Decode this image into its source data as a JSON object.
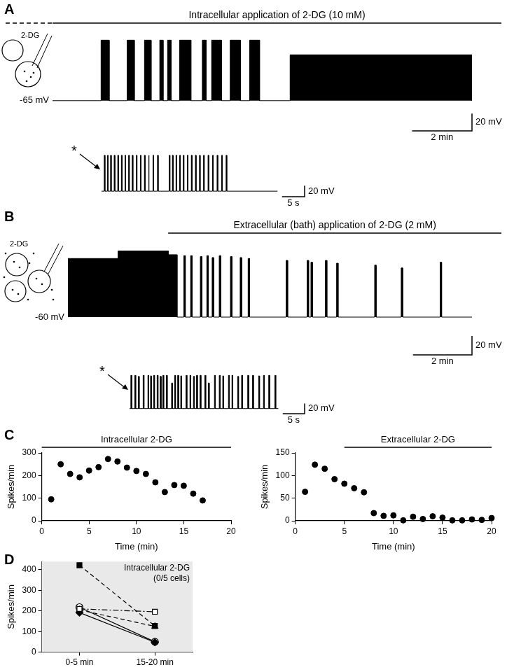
{
  "chart_data": [
    {
      "type": "line",
      "panel": "A",
      "title": "Intracellular application of 2-DG (10 mM)",
      "application_start": 0,
      "schematic_label": "2-DG",
      "baseline": -65,
      "baseline_label": "-65 mV",
      "color": "#000000",
      "xlim": [
        0,
        14
      ],
      "ylim": [
        -100,
        15
      ],
      "tick_labels": false,
      "trace_end": 14,
      "bursts": [
        [
          1.62,
          1.89,
          5
        ],
        [
          2.49,
          2.73,
          5
        ],
        [
          3.07,
          3.29,
          5
        ],
        [
          3.58,
          3.69,
          5
        ],
        [
          3.84,
          3.96,
          5
        ],
        [
          4.24,
          4.62,
          5
        ],
        [
          5.0,
          5.13,
          5
        ],
        [
          5.31,
          5.64,
          5
        ],
        [
          5.93,
          6.27,
          5
        ],
        [
          6.58,
          6.91,
          5
        ],
        [
          7.93,
          14,
          -12
        ]
      ],
      "scale_bars": {
        "x": {
          "value": 2,
          "label": "2 min"
        },
        "y": {
          "value": 20,
          "label": "20 mV"
        }
      }
    },
    {
      "type": "line",
      "marker_label": "*",
      "baseline": -65,
      "color": "#000000",
      "xlim": [
        0,
        45
      ],
      "ylim": [
        -75,
        10
      ],
      "tick_labels": false,
      "trace_end": 39,
      "bursts": [
        [
          0.6,
          0.75,
          0
        ],
        [
          1.3,
          1.45,
          0
        ],
        [
          2.0,
          2.15,
          0
        ],
        [
          2.8,
          2.95,
          0
        ],
        [
          3.6,
          3.75,
          0
        ],
        [
          4.4,
          4.55,
          0
        ],
        [
          5.2,
          5.35,
          0
        ],
        [
          6.0,
          6.15,
          0
        ],
        [
          6.8,
          6.95,
          0
        ],
        [
          7.7,
          7.85,
          0
        ],
        [
          8.6,
          8.75,
          0
        ],
        [
          9.5,
          9.65,
          0
        ],
        [
          10.4,
          10.55,
          0
        ],
        [
          11.4,
          11.55,
          0
        ],
        [
          12.4,
          12.55,
          0
        ],
        [
          15.0,
          15.15,
          0
        ],
        [
          15.7,
          15.85,
          0
        ],
        [
          16.5,
          16.65,
          0
        ],
        [
          17.3,
          17.45,
          0
        ],
        [
          18.1,
          18.25,
          0
        ],
        [
          19.0,
          19.15,
          0
        ],
        [
          19.9,
          20.05,
          0
        ],
        [
          20.8,
          20.95,
          0
        ],
        [
          21.7,
          21.85,
          0
        ],
        [
          22.6,
          22.75,
          0
        ],
        [
          23.6,
          23.75,
          0
        ],
        [
          24.6,
          24.75,
          0
        ],
        [
          25.6,
          25.75,
          0
        ],
        [
          26.6,
          26.75,
          0
        ],
        [
          27.6,
          27.75,
          0
        ]
      ],
      "scale_bars": {
        "x": {
          "value": 5,
          "label": "5 s"
        },
        "y": {
          "value": 20,
          "label": "20 mV"
        }
      }
    },
    {
      "type": "line",
      "panel": "B",
      "title": "Extracellular (bath) application of 2-DG (2 mM)",
      "application_start": 3.4,
      "schematic_label": "2-DG",
      "baseline": -60,
      "baseline_label": "-60 mV",
      "color": "#000000",
      "xlim": [
        0,
        13.7
      ],
      "ylim": [
        -100,
        20
      ],
      "tick_labels": false,
      "trace_end": 13.7,
      "bursts": [
        [
          0,
          1.7,
          2
        ],
        [
          1.7,
          3.4,
          10
        ],
        [
          3.4,
          3.7,
          6
        ],
        [
          3.93,
          3.98,
          5
        ],
        [
          4.16,
          4.21,
          5
        ],
        [
          4.49,
          4.54,
          4
        ],
        [
          4.71,
          4.76,
          5
        ],
        [
          4.89,
          4.94,
          3
        ],
        [
          5.13,
          5.18,
          5
        ],
        [
          5.51,
          5.56,
          4
        ],
        [
          5.84,
          5.89,
          3
        ],
        [
          6.11,
          6.16,
          2
        ],
        [
          7.4,
          7.45,
          0
        ],
        [
          8.11,
          8.16,
          0
        ],
        [
          8.24,
          8.29,
          -2
        ],
        [
          8.73,
          8.78,
          0
        ],
        [
          9.11,
          9.16,
          -3
        ],
        [
          10.4,
          10.45,
          -5
        ],
        [
          11.3,
          11.35,
          -8
        ],
        [
          12.62,
          12.67,
          -2
        ]
      ],
      "scale_bars": {
        "x": {
          "value": 2,
          "label": "2 min"
        },
        "y": {
          "value": 20,
          "label": "20 mV"
        }
      }
    },
    {
      "type": "line",
      "marker_label": "*",
      "baseline": -60,
      "color": "#000000",
      "xlim": [
        0,
        40
      ],
      "ylim": [
        -70,
        15
      ],
      "tick_labels": false,
      "trace_end": 34,
      "bursts": [
        [
          0.3,
          0.5,
          5
        ],
        [
          1.2,
          1.4,
          5
        ],
        [
          2.0,
          2.2,
          3
        ],
        [
          3.1,
          3.3,
          5
        ],
        [
          4.2,
          4.4,
          5
        ],
        [
          4.8,
          5.0,
          4
        ],
        [
          5.5,
          5.7,
          5
        ],
        [
          6.3,
          6.5,
          5
        ],
        [
          7.0,
          7.2,
          3
        ],
        [
          7.6,
          7.8,
          5
        ],
        [
          8.4,
          8.6,
          5
        ],
        [
          9.6,
          9.8,
          -10
        ],
        [
          10.3,
          10.5,
          5
        ],
        [
          11.0,
          11.2,
          5
        ],
        [
          11.7,
          11.9,
          4
        ],
        [
          12.9,
          13.1,
          5
        ],
        [
          13.8,
          14.0,
          5
        ],
        [
          14.6,
          14.8,
          3
        ],
        [
          15.3,
          15.5,
          5
        ],
        [
          16.1,
          16.3,
          5
        ],
        [
          17.2,
          17.4,
          5
        ],
        [
          18.0,
          18.2,
          -10
        ],
        [
          19.4,
          19.6,
          5
        ],
        [
          20.5,
          20.7,
          5
        ],
        [
          21.3,
          21.5,
          4
        ],
        [
          22.6,
          22.8,
          5
        ],
        [
          23.4,
          23.6,
          5
        ],
        [
          24.7,
          24.9,
          3
        ],
        [
          25.6,
          25.8,
          5
        ],
        [
          27.0,
          27.2,
          5
        ],
        [
          28.1,
          28.3,
          5
        ],
        [
          29.5,
          29.7,
          4
        ],
        [
          30.6,
          30.8,
          5
        ],
        [
          31.8,
          32.0,
          5
        ],
        [
          33.2,
          33.4,
          5
        ]
      ],
      "scale_bars": {
        "x": {
          "value": 5,
          "label": "5 s"
        },
        "y": {
          "value": 20,
          "label": "20 mV"
        }
      }
    },
    {
      "type": "scatter",
      "panel": "C",
      "title": "Intracellular 2-DG",
      "application_period": [
        0,
        20
      ],
      "x": [
        1,
        2,
        3,
        4,
        5,
        6,
        7,
        8,
        9,
        10,
        11,
        12,
        13,
        14,
        15,
        16,
        17
      ],
      "values": [
        95,
        250,
        207,
        192,
        222,
        237,
        273,
        262,
        235,
        220,
        207,
        170,
        127,
        158,
        155,
        120,
        90
      ],
      "x_label": "Time (min)",
      "y_label": "Spikes/min",
      "xlim": [
        0,
        20
      ],
      "xticks": [
        0,
        5,
        10,
        15,
        20
      ],
      "ylim": [
        0,
        300
      ],
      "yticks": [
        0,
        100,
        200,
        300
      ],
      "grid": false,
      "marker": "circle",
      "color": "#000000"
    },
    {
      "type": "scatter",
      "title": "Extracellular 2-DG",
      "application_period": [
        5,
        20
      ],
      "x": [
        1,
        2,
        3,
        4,
        5,
        6,
        7,
        8,
        9,
        10,
        11,
        12,
        13,
        14,
        15,
        16,
        17,
        18,
        19,
        20
      ],
      "values": [
        64,
        124,
        115,
        92,
        82,
        72,
        63,
        17,
        11,
        12,
        1,
        9,
        4,
        10,
        7,
        1,
        1,
        3,
        2,
        6
      ],
      "x_label": "Time (min)",
      "y_label": "Spikes/min",
      "xlim": [
        0,
        20
      ],
      "xticks": [
        0,
        5,
        10,
        15,
        20
      ],
      "ylim": [
        0,
        150
      ],
      "yticks": [
        0,
        50,
        100,
        150
      ],
      "grid": false,
      "marker": "circle",
      "color": "#000000"
    },
    {
      "type": "line",
      "panel": "D",
      "categories": [
        "0-5 min",
        "15-20 min"
      ],
      "annotation": [
        "Intracellular 2-DG",
        "(0/5 cells)"
      ],
      "y_label": "Spikes/min",
      "ylim": [
        0,
        440
      ],
      "yticks": [
        0,
        100,
        200,
        300,
        400
      ],
      "grid": false,
      "color": "#000000",
      "series": [
        {
          "marker": "square",
          "line_style": "dashed",
          "values": [
            422,
            127
          ]
        },
        {
          "marker": "open_square",
          "line_style": "dashdot",
          "values": [
            210,
            196
          ]
        },
        {
          "marker": "triangle",
          "line_style": "dashed",
          "values": [
            205,
            125
          ]
        },
        {
          "marker": "diamond",
          "line_style": "solid",
          "values": [
            192,
            48
          ]
        },
        {
          "marker": "open_circle",
          "line_style": "solid",
          "values": [
            218,
            50
          ]
        }
      ]
    }
  ]
}
